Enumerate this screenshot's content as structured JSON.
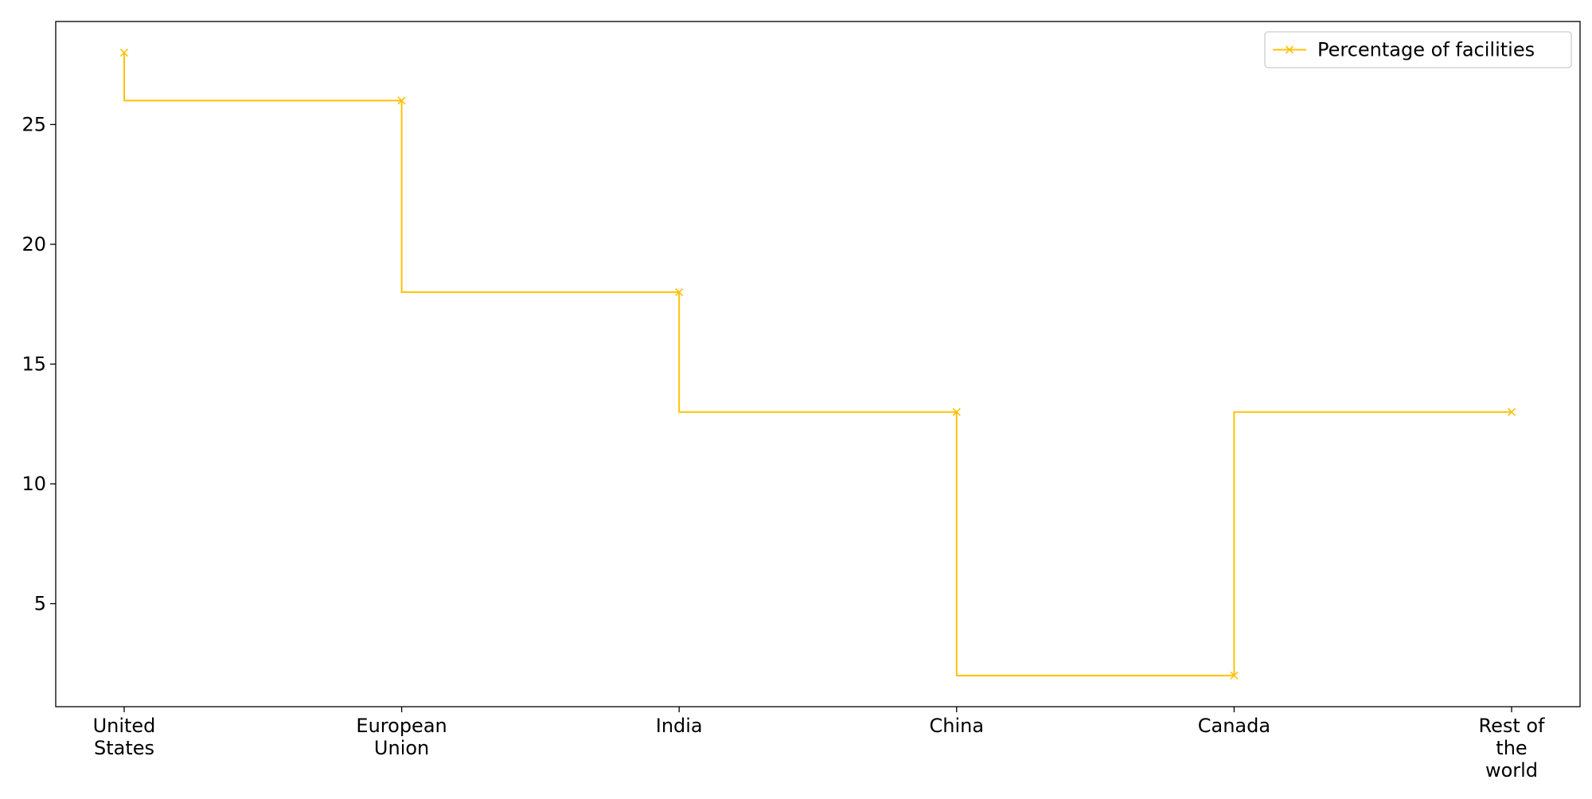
{
  "chart_data": {
    "type": "line",
    "step": "pre",
    "categories": [
      [
        "United",
        "States"
      ],
      [
        "European",
        "Union"
      ],
      [
        "India"
      ],
      [
        "China"
      ],
      [
        "Canada"
      ],
      [
        "Rest of",
        "the",
        "world"
      ]
    ],
    "series": [
      {
        "name": "Percentage of facilities",
        "values": [
          28,
          26,
          18,
          13,
          2,
          13
        ],
        "color": "#FFC107",
        "marker": "x"
      }
    ],
    "title": "",
    "xlabel": "",
    "ylabel": "",
    "ylim": [
      0.7,
      29.3
    ],
    "yticks": [
      5,
      10,
      15,
      20,
      25
    ],
    "grid": false,
    "legend_position": "top-right"
  }
}
